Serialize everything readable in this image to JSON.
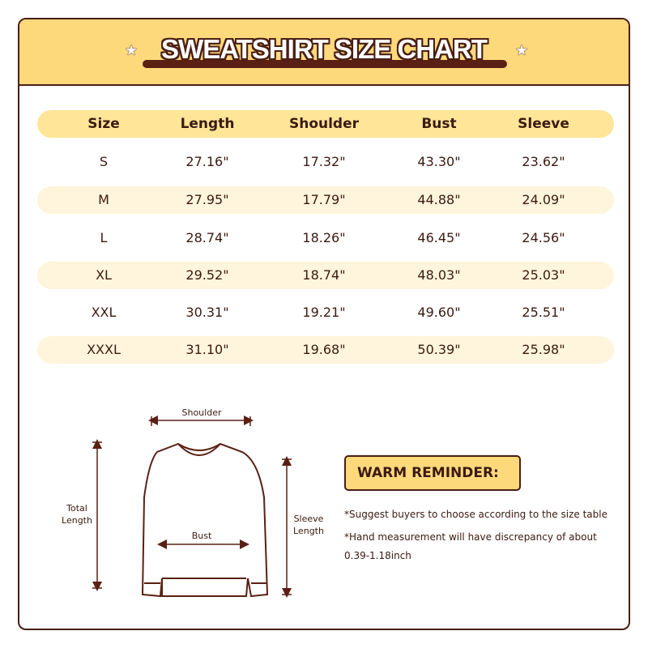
{
  "title": "SWEATSHIRT SIZE CHART",
  "table": {
    "headers": [
      "Size",
      "Length",
      "Shoulder",
      "Bust",
      "Sleeve"
    ],
    "rows": [
      [
        "S",
        "27.16\"",
        "17.32\"",
        "43.30\"",
        "23.62\""
      ],
      [
        "M",
        "27.95\"",
        "17.79\"",
        "44.88\"",
        "24.09\""
      ],
      [
        "L",
        "28.74\"",
        "18.26\"",
        "46.45\"",
        "24.56\""
      ],
      [
        "XL",
        "29.52\"",
        "18.74\"",
        "48.03\"",
        "25.03\""
      ],
      [
        "XXL",
        "30.31\"",
        "19.21\"",
        "49.60\"",
        "25.51\""
      ],
      [
        "XXXL",
        "31.10\"",
        "19.68\"",
        "50.39\"",
        "25.98\""
      ]
    ]
  },
  "diagram": {
    "shoulder": "Shoulder",
    "total_length_1": "Total",
    "total_length_2": "Length",
    "bust": "Bust",
    "sleeve_1": "Sleeve",
    "sleeve_2": "Length"
  },
  "reminder": {
    "heading": "WARM REMINDER:",
    "note1": "*Suggest buyers to choose according to the size table",
    "note2": "*Hand measurement will have discrepancy of about",
    "note3": "0.39-1.18inch"
  },
  "colors": {
    "header": "#fdd97c",
    "outline": "#4a1e14",
    "stripe": "#fff5dc"
  }
}
